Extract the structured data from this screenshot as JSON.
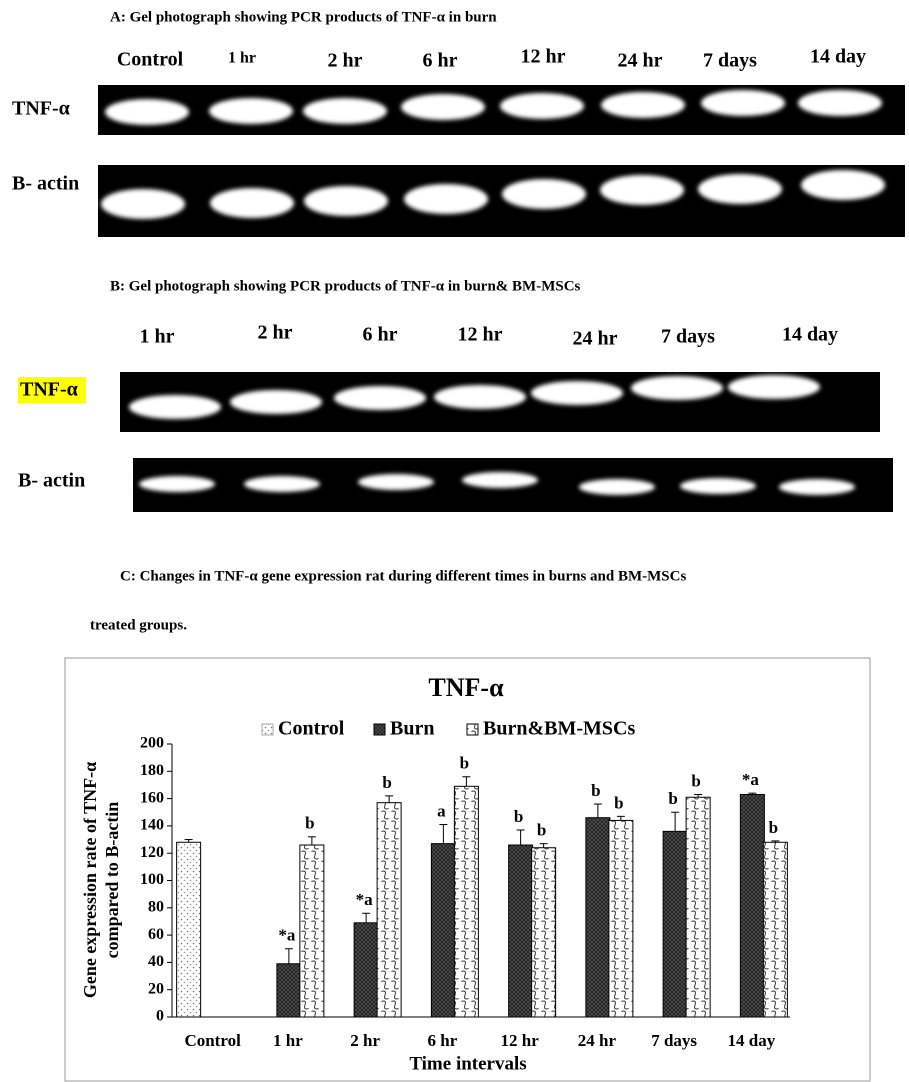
{
  "panel_a": {
    "title": "A: Gel photograph showing PCR products of TNF-α in burn",
    "lanes": [
      "Control",
      "1 hr",
      "2 hr",
      "6 hr",
      "12 hr",
      "24 hr",
      "7 days",
      "14 day"
    ],
    "rows": [
      "TNF-α",
      "B- actin"
    ]
  },
  "panel_b": {
    "title": "B: Gel photograph showing PCR products of TNF-α in burn& BM-MSCs",
    "lanes": [
      "1 hr",
      "2 hr",
      "6 hr",
      "12 hr",
      "24 hr",
      "7 days",
      "14 day"
    ],
    "rows": [
      "TNF-α",
      "B- actin"
    ]
  },
  "panel_c": {
    "caption": "C: Changes in TNF-α gene expression rat during different times in burns and BM-MSCs",
    "caption_cont": "treated groups."
  },
  "chart_data": {
    "type": "bar",
    "title": "TNF-α",
    "x_label": "Time intervals",
    "y_label": [
      "Gene expression rate of TNF-α",
      "compared to B-actin"
    ],
    "categories": [
      "Control",
      "1 hr",
      "2 hr",
      "6 hr",
      "12 hr",
      "24 hr",
      "7 days",
      "14 day"
    ],
    "series": [
      {
        "name": "Control",
        "color": "#ffffff",
        "values": [
          128,
          null,
          null,
          null,
          null,
          null,
          null,
          null
        ],
        "errors": [
          2,
          null,
          null,
          null,
          null,
          null,
          null,
          null
        ]
      },
      {
        "name": "Burn",
        "color": "#555555",
        "values": [
          null,
          39,
          69,
          127,
          126,
          146,
          136,
          163
        ],
        "errors": [
          null,
          11,
          7,
          14,
          11,
          10,
          14,
          1
        ],
        "labels": [
          null,
          "*a",
          "*a",
          "a",
          "b",
          "b",
          "b",
          "*a"
        ]
      },
      {
        "name": "Burn&BM-MSCs",
        "color": "#ffffff",
        "values": [
          null,
          126,
          157,
          169,
          124,
          144,
          161,
          128
        ],
        "errors": [
          null,
          6,
          5,
          7,
          3,
          3,
          2,
          1
        ],
        "labels": [
          null,
          "b",
          "b",
          "b",
          "b",
          "b",
          "b",
          "b"
        ]
      }
    ],
    "ylim": [
      0,
      200
    ],
    "yticks": [
      0,
      20,
      40,
      60,
      80,
      100,
      120,
      140,
      160,
      180,
      200
    ],
    "grid": false,
    "legend": "top"
  }
}
